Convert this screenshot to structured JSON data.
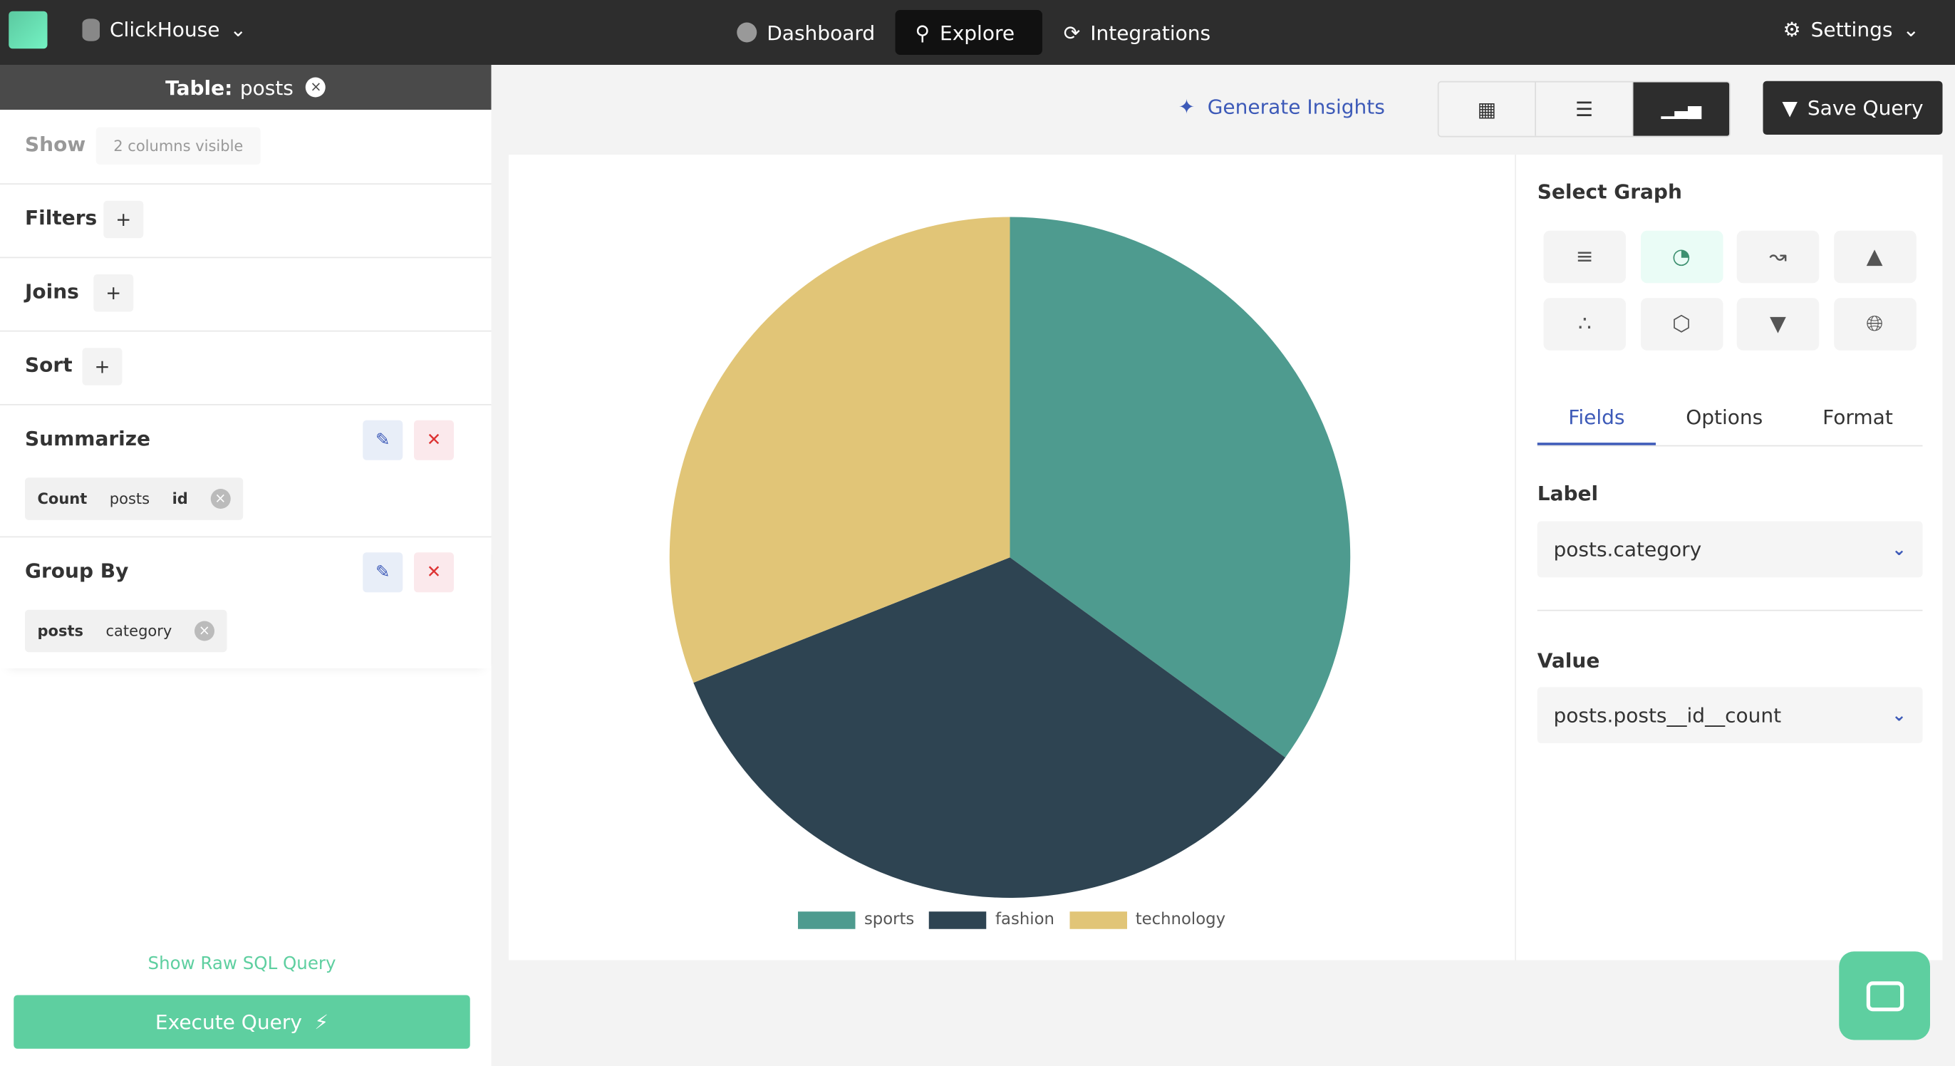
{
  "topbar": {
    "database": "ClickHouse",
    "nav": [
      {
        "label": "Dashboard",
        "icon": "gauge-icon"
      },
      {
        "label": "Explore",
        "icon": "search-icon",
        "active": true
      },
      {
        "label": "Integrations",
        "icon": "refresh-icon"
      }
    ],
    "settings": "Settings"
  },
  "sidebar": {
    "table_label": "Table:",
    "table_name": "posts",
    "show_label": "Show",
    "show_value": "2 columns visible",
    "filters_label": "Filters",
    "joins_label": "Joins",
    "sort_label": "Sort",
    "plus": "+",
    "summarize_label": "Summarize",
    "summarize_pill": {
      "agg": "Count",
      "table": "posts",
      "column": "id"
    },
    "groupby_label": "Group By",
    "groupby_pill": {
      "table": "posts",
      "column": "category"
    },
    "raw_sql": "Show Raw SQL Query",
    "execute": "Execute Query"
  },
  "toolbar": {
    "generate_insights": "Generate Insights",
    "views": [
      "table-view",
      "list-view",
      "chart-view"
    ],
    "active_view": "chart-view",
    "save_query": "Save Query"
  },
  "panel": {
    "select_graph": "Select Graph",
    "graph_types": [
      "bar",
      "pie",
      "line",
      "area",
      "scatter",
      "radar",
      "funnel",
      "map"
    ],
    "selected_graph": "pie",
    "tabs": [
      "Fields",
      "Options",
      "Format"
    ],
    "active_tab": "Fields",
    "label_title": "Label",
    "label_value": "posts.category",
    "value_title": "Value",
    "value_value": "posts.posts__id__count"
  },
  "chart_data": {
    "type": "pie",
    "categories": [
      "sports",
      "fashion",
      "technology"
    ],
    "values": [
      35,
      34,
      31
    ],
    "colors": [
      "#4e9b8f",
      "#2e4452",
      "#e1c577"
    ],
    "legend": "bottom"
  }
}
